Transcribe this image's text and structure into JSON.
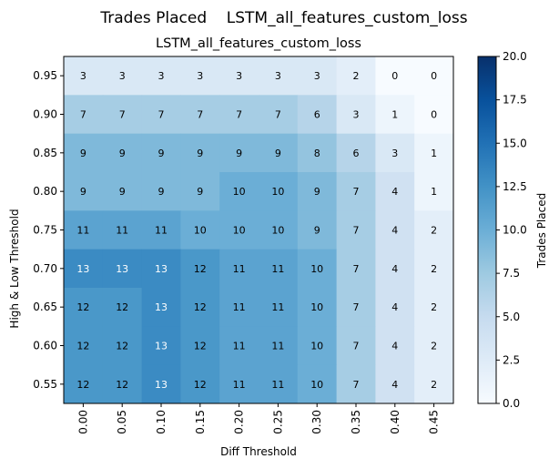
{
  "figure": {
    "suptitle": "Trades Placed    LSTM_all_features_custom_loss"
  },
  "chart_data": {
    "type": "heatmap",
    "title": "LSTM_all_features_custom_loss",
    "xlabel": "Diff Threshold",
    "ylabel": "High & Low Threshold",
    "x_tick_labels": [
      "0.00",
      "0.05",
      "0.10",
      "0.15",
      "0.20",
      "0.25",
      "0.30",
      "0.35",
      "0.40",
      "0.45"
    ],
    "y_tick_labels": [
      "0.95",
      "0.90",
      "0.85",
      "0.80",
      "0.75",
      "0.70",
      "0.65",
      "0.60",
      "0.55"
    ],
    "values": [
      [
        3,
        3,
        3,
        3,
        3,
        3,
        3,
        2,
        0,
        0
      ],
      [
        7,
        7,
        7,
        7,
        7,
        7,
        6,
        3,
        1,
        0
      ],
      [
        9,
        9,
        9,
        9,
        9,
        9,
        8,
        6,
        3,
        1
      ],
      [
        9,
        9,
        9,
        9,
        10,
        10,
        9,
        7,
        4,
        1
      ],
      [
        11,
        11,
        11,
        10,
        10,
        10,
        9,
        7,
        4,
        2
      ],
      [
        13,
        13,
        13,
        12,
        11,
        11,
        10,
        7,
        4,
        2
      ],
      [
        12,
        12,
        13,
        12,
        11,
        11,
        10,
        7,
        4,
        2
      ],
      [
        12,
        12,
        13,
        12,
        11,
        11,
        10,
        7,
        4,
        2
      ],
      [
        12,
        12,
        13,
        12,
        11,
        11,
        10,
        7,
        4,
        2
      ]
    ],
    "colormap": "Blues",
    "vmin": 0,
    "vmax": 20,
    "colorbar": {
      "label": "Trades Placed",
      "ticks": [
        "0.0",
        "2.5",
        "5.0",
        "7.5",
        "10.0",
        "12.5",
        "15.0",
        "17.5",
        "20.0"
      ]
    },
    "annotation_colors": {
      "dark": "#000000",
      "light": "#ffffff"
    },
    "grid": false
  }
}
